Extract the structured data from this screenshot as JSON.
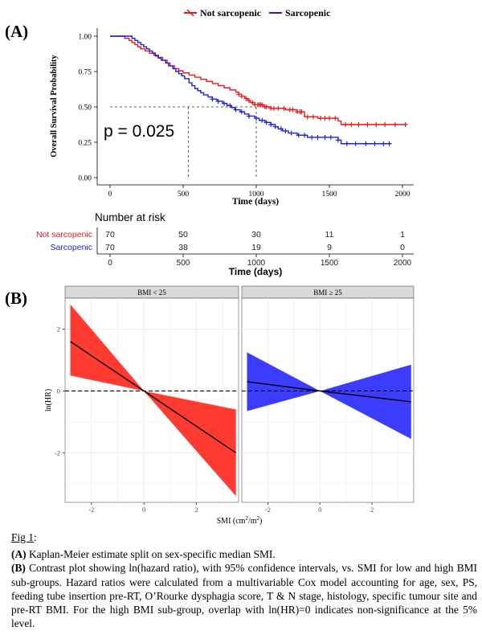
{
  "panel_a_label": "(A)",
  "panel_b_label": "(B)",
  "pvalue_text": "p = 0.025",
  "risk_table_title": "Number at risk",
  "colors": {
    "red": "#e41a1c",
    "blue": "#1f1fd6",
    "facet_strip": "#d9d9d9"
  },
  "chart_data": [
    {
      "type": "line",
      "name": "kaplan-meier",
      "xlabel": "Time (days)",
      "ylabel": "Overall Survival Probability",
      "xlim": [
        0,
        2000
      ],
      "ylim": [
        0,
        1
      ],
      "xticks": [
        0,
        500,
        1000,
        1500,
        2000
      ],
      "yticks": [
        "0.00",
        "0.25",
        "0.50",
        "0.75",
        "1.00"
      ],
      "grid": false,
      "legend_position": "top",
      "median_reference": {
        "y": 0.5,
        "x": [
          535,
          1000
        ]
      },
      "series": [
        {
          "name": "Not sarcopenic",
          "color": "#e41a1c",
          "steps": [
            [
              0,
              1.0
            ],
            [
              70,
              1.0
            ],
            [
              100,
              0.985
            ],
            [
              130,
              0.97
            ],
            [
              150,
              0.955
            ],
            [
              170,
              0.94
            ],
            [
              190,
              0.925
            ],
            [
              210,
              0.91
            ],
            [
              240,
              0.895
            ],
            [
              270,
              0.88
            ],
            [
              300,
              0.865
            ],
            [
              330,
              0.85
            ],
            [
              360,
              0.83
            ],
            [
              390,
              0.81
            ],
            [
              410,
              0.79
            ],
            [
              440,
              0.77
            ],
            [
              470,
              0.755
            ],
            [
              500,
              0.74
            ],
            [
              540,
              0.725
            ],
            [
              580,
              0.71
            ],
            [
              620,
              0.695
            ],
            [
              660,
              0.68
            ],
            [
              700,
              0.665
            ],
            [
              740,
              0.65
            ],
            [
              780,
              0.635
            ],
            [
              820,
              0.62
            ],
            [
              860,
              0.605
            ],
            [
              880,
              0.59
            ],
            [
              900,
              0.575
            ],
            [
              920,
              0.56
            ],
            [
              940,
              0.545
            ],
            [
              960,
              0.53
            ],
            [
              990,
              0.515
            ],
            [
              1050,
              0.5
            ],
            [
              1100,
              0.49
            ],
            [
              1200,
              0.48
            ],
            [
              1280,
              0.465
            ],
            [
              1330,
              0.43
            ],
            [
              1420,
              0.42
            ],
            [
              1560,
              0.4
            ],
            [
              1580,
              0.375
            ],
            [
              2020,
              0.375
            ]
          ],
          "censor_x": [
            880,
            900,
            930,
            950,
            975,
            990,
            1010,
            1020,
            1030,
            1040,
            1060,
            1070,
            1100,
            1120,
            1150,
            1190,
            1230,
            1250,
            1280,
            1300,
            1310,
            1350,
            1390,
            1440,
            1470,
            1500,
            1540,
            1610,
            1650,
            1700,
            1760,
            1820,
            1880,
            1950,
            2020
          ]
        },
        {
          "name": "Sarcopenic",
          "color": "#1f1fd6",
          "steps": [
            [
              0,
              1.0
            ],
            [
              120,
              1.0
            ],
            [
              150,
              0.985
            ],
            [
              170,
              0.97
            ],
            [
              190,
              0.955
            ],
            [
              210,
              0.94
            ],
            [
              230,
              0.925
            ],
            [
              250,
              0.91
            ],
            [
              270,
              0.895
            ],
            [
              290,
              0.88
            ],
            [
              310,
              0.86
            ],
            [
              330,
              0.845
            ],
            [
              350,
              0.83
            ],
            [
              380,
              0.81
            ],
            [
              400,
              0.79
            ],
            [
              430,
              0.77
            ],
            [
              450,
              0.75
            ],
            [
              470,
              0.735
            ],
            [
              490,
              0.72
            ],
            [
              510,
              0.7
            ],
            [
              540,
              0.67
            ],
            [
              560,
              0.65
            ],
            [
              580,
              0.63
            ],
            [
              600,
              0.615
            ],
            [
              620,
              0.6
            ],
            [
              640,
              0.585
            ],
            [
              670,
              0.57
            ],
            [
              700,
              0.555
            ],
            [
              730,
              0.54
            ],
            [
              770,
              0.525
            ],
            [
              800,
              0.51
            ],
            [
              830,
              0.495
            ],
            [
              855,
              0.48
            ],
            [
              890,
              0.465
            ],
            [
              920,
              0.45
            ],
            [
              950,
              0.435
            ],
            [
              990,
              0.42
            ],
            [
              1020,
              0.405
            ],
            [
              1060,
              0.39
            ],
            [
              1100,
              0.375
            ],
            [
              1130,
              0.36
            ],
            [
              1150,
              0.345
            ],
            [
              1180,
              0.33
            ],
            [
              1220,
              0.315
            ],
            [
              1280,
              0.3
            ],
            [
              1350,
              0.285
            ],
            [
              1560,
              0.265
            ],
            [
              1580,
              0.24
            ],
            [
              1920,
              0.24
            ]
          ],
          "censor_x": [
            700,
            740,
            780,
            820,
            860,
            900,
            950,
            1000,
            1040,
            1070,
            1100,
            1130,
            1170,
            1200,
            1240,
            1290,
            1330,
            1380,
            1420,
            1470,
            1510,
            1560,
            1620,
            1680,
            1750,
            1810,
            1870,
            1910
          ]
        }
      ]
    },
    {
      "type": "table",
      "name": "number-at-risk",
      "title": "Number at risk",
      "xlabel": "Time (days)",
      "columns": [
        0,
        500,
        1000,
        1500,
        2000
      ],
      "rows": [
        {
          "name": "Not sarcopenic",
          "color": "#e41a1c",
          "values": [
            70,
            50,
            30,
            11,
            1
          ]
        },
        {
          "name": "Sarcopenic",
          "color": "#1f1fd6",
          "values": [
            70,
            38,
            19,
            9,
            0
          ]
        }
      ]
    },
    {
      "type": "area",
      "name": "contrast-plot",
      "ylabel": "ln(HR)",
      "xlabel_parts": [
        "SMI (cm",
        "2",
        "/m",
        "2",
        ")"
      ],
      "ylim": [
        -3.6,
        3.0
      ],
      "yticks": [
        -2,
        0,
        2
      ],
      "grid": true,
      "reference_line_y": 0,
      "facets": [
        {
          "label": "BMI < 25",
          "color": "#ff2a1f",
          "xlim": [
            -3.0,
            3.6
          ],
          "xticks": [
            -2,
            0,
            2
          ],
          "x": [
            -2.8,
            0,
            3.5
          ],
          "estimate": [
            1.6,
            0,
            -2.0
          ],
          "lower": [
            0.5,
            0,
            -3.4
          ],
          "upper": [
            2.8,
            0,
            -0.6
          ]
        },
        {
          "label": "BMI ≥ 25",
          "color": "#2b2bff",
          "xlim": [
            -3.0,
            3.6
          ],
          "xticks": [
            -2,
            0,
            2
          ],
          "x": [
            -2.8,
            0,
            3.5
          ],
          "estimate": [
            0.3,
            0,
            -0.35
          ],
          "lower": [
            -0.65,
            0,
            -1.55
          ],
          "upper": [
            1.25,
            0,
            0.85
          ]
        }
      ]
    }
  ],
  "caption": {
    "fig_title": "Fig 1",
    "fig_title_suffix": ":",
    "a_label": "(A)",
    "a_text": " Kaplan-Meier estimate split on sex-specific median SMI.",
    "b_label": "(B)",
    "b_text": " Contrast plot showing ln(hazard ratio), with 95% confidence intervals, vs. SMI for low and high BMI sub-groups. Hazard ratios were calculated from a multivariable Cox model accounting for age, sex, PS, feeding tube insertion pre-RT, O’Rourke dysphagia score, T & N stage, histology, specific tumour site and pre-RT BMI. For the high BMI sub-group, overlap with ln(HR)=0 indicates non-significance at the 5% level."
  }
}
